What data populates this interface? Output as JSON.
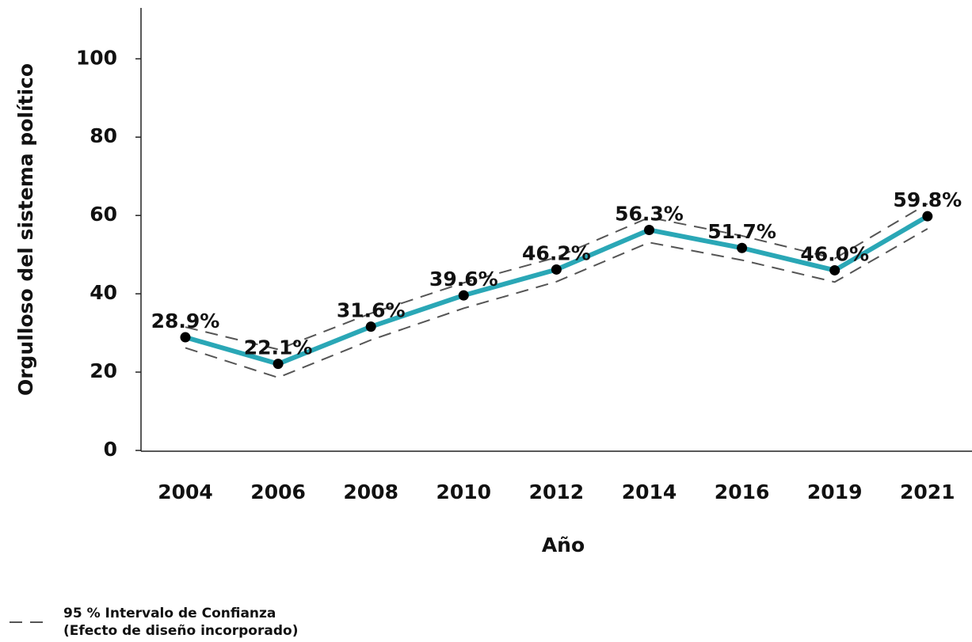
{
  "chart_data": {
    "type": "line",
    "y_label": "Orgulloso del sistema político",
    "x_label": "Año",
    "categories": [
      "2004",
      "2006",
      "2008",
      "2010",
      "2012",
      "2014",
      "2016",
      "2019",
      "2021"
    ],
    "values": [
      28.9,
      22.1,
      31.6,
      39.6,
      46.2,
      56.3,
      51.7,
      46.0,
      59.8
    ],
    "value_labels": [
      "28.9%",
      "22.1%",
      "31.6%",
      "39.6%",
      "46.2%",
      "56.3%",
      "51.7%",
      "46.0%",
      "59.8%"
    ],
    "color": "#2aa7b6",
    "ci": {
      "label": [
        "95 % Intervalo de Confianza",
        "(Efecto de diseño incorporado)"
      ],
      "color": "#555555",
      "upper": [
        31.5,
        25.8,
        35.0,
        42.8,
        49.3,
        59.5,
        54.8,
        49.0,
        63.0
      ],
      "lower": [
        26.2,
        18.6,
        28.2,
        36.3,
        43.1,
        53.1,
        48.6,
        43.0,
        56.6
      ]
    },
    "ylim": [
      0,
      113
    ],
    "yticks": [
      0,
      20,
      40,
      60,
      80,
      100
    ]
  }
}
